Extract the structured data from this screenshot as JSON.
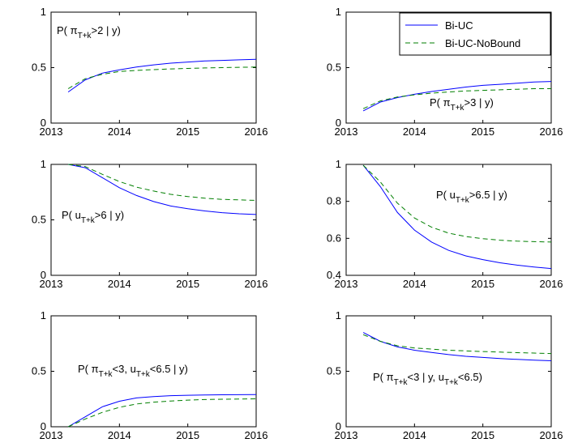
{
  "chart_data": [
    {
      "type": "line",
      "annotation": {
        "pre": "P( π",
        "sub": "T+k",
        "post": ">2 | y)"
      },
      "x": [
        2013.25,
        2013.5,
        2013.75,
        2014.0,
        2014.25,
        2014.5,
        2014.75,
        2015.0,
        2015.25,
        2015.5,
        2015.75,
        2016.0
      ],
      "xlim": [
        2013,
        2016
      ],
      "ylim": [
        0,
        1
      ],
      "xticks": [
        "2013",
        "2014",
        "2015",
        "2016"
      ],
      "yticks": [
        "0",
        "0.5",
        "1"
      ],
      "series": [
        {
          "name": "Bi-UC",
          "values": [
            0.28,
            0.39,
            0.45,
            0.48,
            0.505,
            0.525,
            0.54,
            0.55,
            0.56,
            0.565,
            0.57,
            0.575
          ]
        },
        {
          "name": "Bi-UC-NoBound",
          "values": [
            0.31,
            0.4,
            0.44,
            0.465,
            0.475,
            0.482,
            0.488,
            0.493,
            0.497,
            0.5,
            0.503,
            0.505
          ]
        }
      ]
    },
    {
      "type": "line",
      "annotation": {
        "pre": "P( π",
        "sub": "T+k",
        "post": ">3 | y)"
      },
      "x": [
        2013.25,
        2013.5,
        2013.75,
        2014.0,
        2014.25,
        2014.5,
        2014.75,
        2015.0,
        2015.25,
        2015.5,
        2015.75,
        2016.0
      ],
      "xlim": [
        2013,
        2016
      ],
      "ylim": [
        0,
        1
      ],
      "xticks": [
        "2013",
        "2014",
        "2015",
        "2016"
      ],
      "yticks": [
        "0",
        "0.5",
        "1"
      ],
      "series": [
        {
          "name": "Bi-UC",
          "values": [
            0.11,
            0.19,
            0.23,
            0.26,
            0.285,
            0.305,
            0.325,
            0.34,
            0.35,
            0.36,
            0.37,
            0.375
          ]
        },
        {
          "name": "Bi-UC-NoBound",
          "values": [
            0.13,
            0.2,
            0.235,
            0.255,
            0.27,
            0.28,
            0.29,
            0.295,
            0.3,
            0.305,
            0.31,
            0.31
          ]
        }
      ]
    },
    {
      "type": "line",
      "annotation": {
        "pre": "P( u",
        "sub": "T+k",
        "post": ">6 | y)"
      },
      "x": [
        2013.25,
        2013.5,
        2013.75,
        2014.0,
        2014.25,
        2014.5,
        2014.75,
        2015.0,
        2015.25,
        2015.5,
        2015.75,
        2016.0
      ],
      "xlim": [
        2013,
        2016
      ],
      "ylim": [
        0,
        1
      ],
      "xticks": [
        "2013",
        "2014",
        "2015",
        "2016"
      ],
      "yticks": [
        "0",
        "0.5",
        "1"
      ],
      "series": [
        {
          "name": "Bi-UC",
          "values": [
            1.0,
            0.97,
            0.88,
            0.79,
            0.72,
            0.665,
            0.625,
            0.6,
            0.58,
            0.565,
            0.555,
            0.548
          ]
        },
        {
          "name": "Bi-UC-NoBound",
          "values": [
            1.0,
            0.98,
            0.91,
            0.845,
            0.795,
            0.76,
            0.73,
            0.71,
            0.695,
            0.685,
            0.68,
            0.675
          ]
        }
      ]
    },
    {
      "type": "line",
      "annotation": {
        "pre": "P( u",
        "sub": "T+k",
        "post": ">6.5 | y)"
      },
      "x": [
        2013.25,
        2013.5,
        2013.75,
        2014.0,
        2014.25,
        2014.5,
        2014.75,
        2015.0,
        2015.25,
        2015.5,
        2015.75,
        2016.0
      ],
      "xlim": [
        2013,
        2016
      ],
      "ylim": [
        0.4,
        1
      ],
      "xticks": [
        "2013",
        "2014",
        "2015",
        "2016"
      ],
      "yticks": [
        "0.4",
        "0.6",
        "0.8",
        "1"
      ],
      "series": [
        {
          "name": "Bi-UC",
          "values": [
            0.995,
            0.88,
            0.74,
            0.645,
            0.58,
            0.535,
            0.505,
            0.485,
            0.468,
            0.455,
            0.445,
            0.437
          ]
        },
        {
          "name": "Bi-UC-NoBound",
          "values": [
            0.995,
            0.905,
            0.79,
            0.71,
            0.66,
            0.628,
            0.61,
            0.598,
            0.59,
            0.585,
            0.582,
            0.58
          ]
        }
      ]
    },
    {
      "type": "line",
      "annotation": {
        "pre": "P( π",
        "sub": "T+k",
        "mid": "<3, u",
        "sub2": "T+k",
        "post": "<6.5  | y)"
      },
      "x": [
        2013.25,
        2013.5,
        2013.75,
        2014.0,
        2014.25,
        2014.5,
        2014.75,
        2015.0,
        2015.25,
        2015.5,
        2015.75,
        2016.0
      ],
      "xlim": [
        2013,
        2016
      ],
      "ylim": [
        0,
        1
      ],
      "xticks": [
        "2013",
        "2014",
        "2015",
        "2016"
      ],
      "yticks": [
        "0",
        "0.5",
        "1"
      ],
      "series": [
        {
          "name": "Bi-UC",
          "values": [
            0.0,
            0.09,
            0.18,
            0.23,
            0.26,
            0.272,
            0.28,
            0.284,
            0.286,
            0.288,
            0.289,
            0.29
          ]
        },
        {
          "name": "Bi-UC-NoBound",
          "values": [
            0.0,
            0.07,
            0.13,
            0.175,
            0.205,
            0.222,
            0.232,
            0.24,
            0.245,
            0.248,
            0.25,
            0.252
          ]
        }
      ]
    },
    {
      "type": "line",
      "annotation": {
        "pre": "P( π",
        "sub": "T+k",
        "mid": "<3 | y, u",
        "sub2": "T+k",
        "post": "<6.5)"
      },
      "x": [
        2013.25,
        2013.5,
        2013.75,
        2014.0,
        2014.25,
        2014.5,
        2014.75,
        2015.0,
        2015.25,
        2015.5,
        2015.75,
        2016.0
      ],
      "xlim": [
        2013,
        2016
      ],
      "ylim": [
        0,
        1
      ],
      "xticks": [
        "2013",
        "2014",
        "2015",
        "2016"
      ],
      "yticks": [
        "0",
        "0.5",
        "1"
      ],
      "series": [
        {
          "name": "Bi-UC",
          "values": [
            0.85,
            0.77,
            0.72,
            0.69,
            0.67,
            0.65,
            0.635,
            0.625,
            0.615,
            0.607,
            0.6,
            0.595
          ]
        },
        {
          "name": "Bi-UC-NoBound",
          "values": [
            0.83,
            0.77,
            0.73,
            0.71,
            0.7,
            0.69,
            0.684,
            0.678,
            0.673,
            0.668,
            0.664,
            0.66
          ]
        }
      ]
    }
  ],
  "legend": {
    "entries": [
      {
        "label": "Bi-UC",
        "color": "#0000ff",
        "style": "solid"
      },
      {
        "label": "Bi-UC-NoBound",
        "color": "#007f00",
        "style": "dashed"
      }
    ],
    "placement": "top-right of first-row right panel"
  },
  "colors": {
    "bi_uc": "#0000ff",
    "bi_uc_nobound": "#007f00"
  }
}
